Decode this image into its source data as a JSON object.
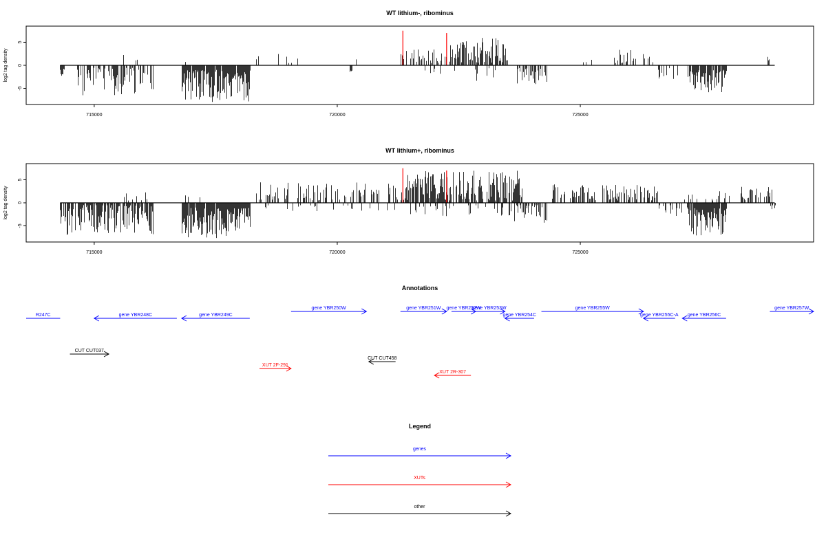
{
  "colors": {
    "genes": "#0000ff",
    "xuts": "#ff0000",
    "other": "#000000",
    "signal": "#000000",
    "highlight": "#ff0000"
  },
  "chart_data": [
    {
      "type": "bar",
      "title": "WT lithium-, ribominus",
      "ylabel": "log2 tag density",
      "xlim": [
        713600,
        729800
      ],
      "ylim": [
        -8.5,
        8.5
      ],
      "xticks": [
        715000,
        720000,
        725000
      ],
      "xtick_labels": [
        "715000",
        "720000",
        "725000"
      ],
      "yticks": [
        -5,
        0,
        5
      ],
      "ytick_labels": [
        "-5",
        "0",
        "5"
      ],
      "baseline": {
        "from": 714300,
        "to": 729000
      },
      "highlight_positions": [
        721350,
        722250
      ],
      "highlight_heights": [
        7.5,
        7.0
      ],
      "segments": [
        {
          "from": 714300,
          "to": 714380,
          "density": 1.0,
          "sign": -1,
          "min": 0.5,
          "max": 2.5,
          "seed": 1
        },
        {
          "from": 714650,
          "to": 716200,
          "density": 0.55,
          "sign": -1,
          "min": 0.5,
          "max": 6.5,
          "seed": 2
        },
        {
          "from": 715400,
          "to": 716000,
          "density": 0.05,
          "sign": 1,
          "min": 0.5,
          "max": 2.5,
          "seed": 3
        },
        {
          "from": 716800,
          "to": 718200,
          "density": 0.9,
          "sign": -1,
          "min": 1.0,
          "max": 8.0,
          "seed": 4
        },
        {
          "from": 716800,
          "to": 717300,
          "density": 0.06,
          "sign": 1,
          "min": 0.5,
          "max": 3.0,
          "seed": 5
        },
        {
          "from": 718300,
          "to": 719200,
          "density": 0.08,
          "sign": 1,
          "min": 0.5,
          "max": 2.5,
          "seed": 6
        },
        {
          "from": 719600,
          "to": 720400,
          "density": 0.05,
          "sign": 1,
          "min": 0.5,
          "max": 3.0,
          "seed": 7
        },
        {
          "from": 720250,
          "to": 720300,
          "density": 1.0,
          "sign": -1,
          "min": 1.0,
          "max": 1.5,
          "seed": 8
        },
        {
          "from": 721300,
          "to": 722300,
          "density": 0.35,
          "sign": 1,
          "min": 0.5,
          "max": 3.5,
          "seed": 9
        },
        {
          "from": 721800,
          "to": 722200,
          "density": 0.1,
          "sign": -1,
          "min": 0.5,
          "max": 2.0,
          "seed": 10
        },
        {
          "from": 722300,
          "to": 723500,
          "density": 0.7,
          "sign": 1,
          "min": 0.5,
          "max": 6.0,
          "seed": 11
        },
        {
          "from": 722400,
          "to": 723300,
          "density": 0.12,
          "sign": -1,
          "min": 0.5,
          "max": 3.5,
          "seed": 12
        },
        {
          "from": 723700,
          "to": 724300,
          "density": 0.6,
          "sign": -1,
          "min": 0.5,
          "max": 4.5,
          "seed": 13
        },
        {
          "from": 724400,
          "to": 725500,
          "density": 0.06,
          "sign": 1,
          "min": 0.5,
          "max": 2.0,
          "seed": 14
        },
        {
          "from": 725700,
          "to": 726500,
          "density": 0.25,
          "sign": 1,
          "min": 0.5,
          "max": 3.5,
          "seed": 15
        },
        {
          "from": 726600,
          "to": 727000,
          "density": 0.3,
          "sign": -1,
          "min": 0.5,
          "max": 3.0,
          "seed": 16
        },
        {
          "from": 727200,
          "to": 728000,
          "density": 0.9,
          "sign": -1,
          "min": 1.0,
          "max": 6.0,
          "seed": 17
        },
        {
          "from": 727300,
          "to": 727900,
          "density": 0.05,
          "sign": 1,
          "min": 0.5,
          "max": 3.0,
          "seed": 18
        },
        {
          "from": 728800,
          "to": 729000,
          "density": 0.35,
          "sign": 1,
          "min": 0.5,
          "max": 4.5,
          "seed": 19
        }
      ]
    },
    {
      "type": "bar",
      "title": "WT lithium+, ribominus",
      "ylabel": "log2 tag density",
      "xlim": [
        713600,
        729800
      ],
      "ylim": [
        -8.5,
        8.5
      ],
      "xticks": [
        715000,
        720000,
        725000
      ],
      "xtick_labels": [
        "715000",
        "720000",
        "725000"
      ],
      "yticks": [
        -5,
        0,
        5
      ],
      "ytick_labels": [
        "-5",
        "0",
        "5"
      ],
      "baseline": {
        "from": 714300,
        "to": 729000
      },
      "highlight_positions": [
        721350,
        722250
      ],
      "highlight_heights": [
        7.5,
        7.0
      ],
      "segments": [
        {
          "from": 714300,
          "to": 716200,
          "density": 0.8,
          "sign": -1,
          "min": 0.5,
          "max": 7.0,
          "seed": 21
        },
        {
          "from": 715600,
          "to": 716200,
          "density": 0.08,
          "sign": 1,
          "min": 0.5,
          "max": 2.5,
          "seed": 22
        },
        {
          "from": 716800,
          "to": 718200,
          "density": 0.95,
          "sign": -1,
          "min": 1.0,
          "max": 8.0,
          "seed": 23
        },
        {
          "from": 716800,
          "to": 717300,
          "density": 0.08,
          "sign": 1,
          "min": 0.5,
          "max": 3.0,
          "seed": 24
        },
        {
          "from": 718300,
          "to": 721300,
          "density": 0.35,
          "sign": 1,
          "min": 0.5,
          "max": 4.5,
          "seed": 25
        },
        {
          "from": 718400,
          "to": 721200,
          "density": 0.08,
          "sign": -1,
          "min": 0.5,
          "max": 2.0,
          "seed": 26
        },
        {
          "from": 721300,
          "to": 723800,
          "density": 0.75,
          "sign": 1,
          "min": 0.5,
          "max": 7.0,
          "seed": 27
        },
        {
          "from": 721500,
          "to": 723600,
          "density": 0.15,
          "sign": -1,
          "min": 0.5,
          "max": 3.0,
          "seed": 28
        },
        {
          "from": 723600,
          "to": 724300,
          "density": 0.6,
          "sign": -1,
          "min": 0.5,
          "max": 4.5,
          "seed": 29
        },
        {
          "from": 724400,
          "to": 726600,
          "density": 0.55,
          "sign": 1,
          "min": 0.5,
          "max": 4.0,
          "seed": 30
        },
        {
          "from": 726600,
          "to": 727100,
          "density": 0.35,
          "sign": -1,
          "min": 0.5,
          "max": 3.0,
          "seed": 31
        },
        {
          "from": 727200,
          "to": 728000,
          "density": 0.95,
          "sign": -1,
          "min": 1.0,
          "max": 7.5,
          "seed": 32
        },
        {
          "from": 727100,
          "to": 728100,
          "density": 0.2,
          "sign": 1,
          "min": 0.5,
          "max": 3.0,
          "seed": 33
        },
        {
          "from": 728300,
          "to": 729000,
          "density": 0.3,
          "sign": 1,
          "min": 0.5,
          "max": 3.5,
          "seed": 34
        },
        {
          "from": 728900,
          "to": 729000,
          "density": 0.5,
          "sign": -1,
          "min": 0.5,
          "max": 1.5,
          "seed": 35
        }
      ]
    }
  ],
  "annotations": {
    "title": "Annotations",
    "xlim": [
      713600,
      729800
    ],
    "features": [
      {
        "label": "R247C",
        "start": 713600,
        "end": 714300,
        "strand": "-",
        "kind": "gene",
        "row": 0,
        "arrow": false
      },
      {
        "label": "gene YBR248C",
        "start": 715000,
        "end": 716700,
        "strand": "-",
        "kind": "gene",
        "row": 0,
        "arrow": true
      },
      {
        "label": "gene YBR249C",
        "start": 716800,
        "end": 718200,
        "strand": "-",
        "kind": "gene",
        "row": 0,
        "arrow": true
      },
      {
        "label": "gene YBR250W",
        "start": 719050,
        "end": 720600,
        "strand": "+",
        "kind": "gene",
        "row": 1,
        "arrow": true
      },
      {
        "label": "gene YBR251W",
        "start": 721300,
        "end": 722250,
        "strand": "+",
        "kind": "gene",
        "row": 1,
        "arrow": true
      },
      {
        "label": "gene YBR252W",
        "start": 722350,
        "end": 722850,
        "strand": "+",
        "kind": "gene",
        "row": 1,
        "arrow": true
      },
      {
        "label": "gene YBR253W",
        "start": 722800,
        "end": 723450,
        "strand": "+",
        "kind": "gene",
        "row": 1,
        "arrow": true
      },
      {
        "label": "gene YBR254C",
        "start": 723450,
        "end": 724050,
        "strand": "-",
        "kind": "gene",
        "row": 0,
        "arrow": true
      },
      {
        "label": "gene YBR255W",
        "start": 724200,
        "end": 726300,
        "strand": "+",
        "kind": "gene",
        "row": 1,
        "arrow": true
      },
      {
        "label": "gene YBR255C-A",
        "start": 726300,
        "end": 726950,
        "strand": "-",
        "kind": "gene",
        "row": 0,
        "arrow": true
      },
      {
        "label": "gene YBR256C",
        "start": 727100,
        "end": 728000,
        "strand": "-",
        "kind": "gene",
        "row": 0,
        "arrow": true
      },
      {
        "label": "gene YBR257W",
        "start": 728900,
        "end": 729800,
        "strand": "+",
        "kind": "gene",
        "row": 1,
        "arrow": true
      },
      {
        "label": "CUT CUT037",
        "start": 714500,
        "end": 715300,
        "strand": "+",
        "kind": "other",
        "row": 2,
        "arrow": true
      },
      {
        "label": "CUT CUT458",
        "start": 720650,
        "end": 721200,
        "strand": "-",
        "kind": "other",
        "row": 3,
        "arrow": true
      },
      {
        "label": "XUT 2F-291",
        "start": 718400,
        "end": 719050,
        "strand": "+",
        "kind": "xut",
        "row": 4,
        "arrow": true
      },
      {
        "label": "XUT 2R-307",
        "start": 722000,
        "end": 722750,
        "strand": "-",
        "kind": "xut",
        "row": 5,
        "arrow": true
      }
    ]
  },
  "legend": {
    "title": "Legend",
    "items": [
      {
        "label": "genes",
        "kind": "gene"
      },
      {
        "label": "XUTs",
        "kind": "xut"
      },
      {
        "label": "other",
        "kind": "other"
      }
    ]
  }
}
